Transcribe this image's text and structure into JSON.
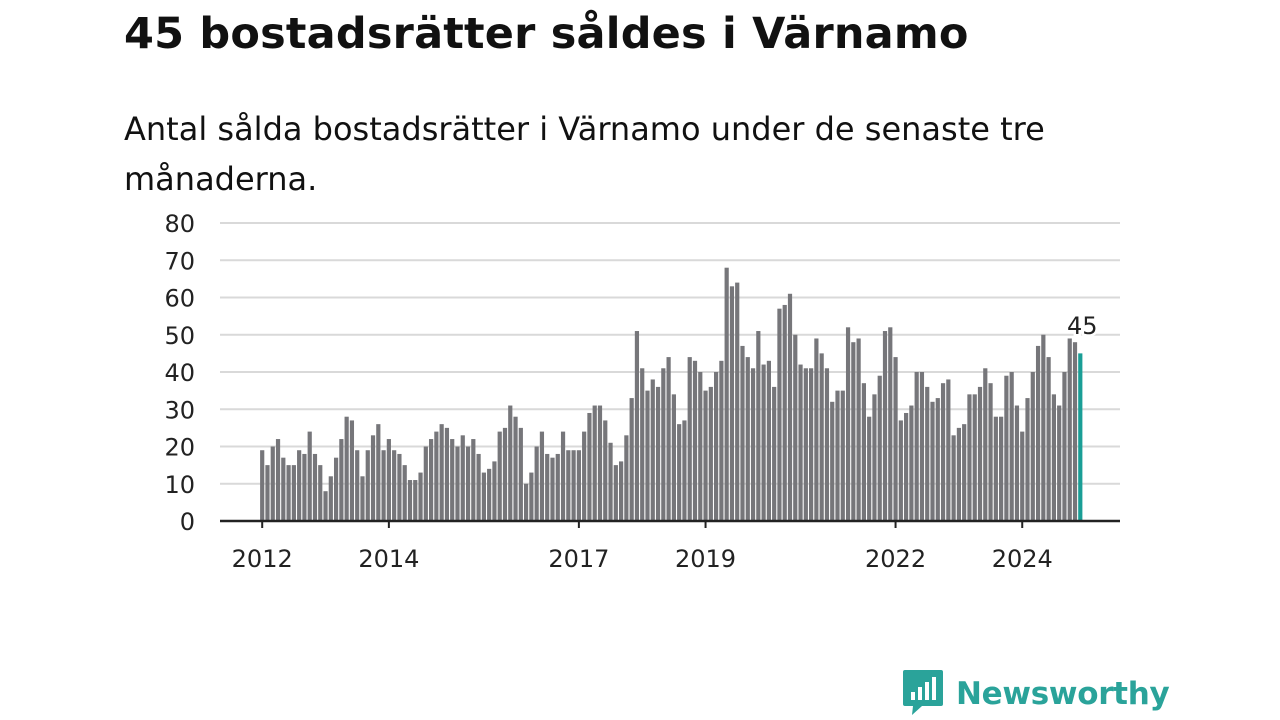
{
  "title": "45 bostadsrätter såldes i Värnamo",
  "subtitle": "Antal sålda bostadsrätter i Värnamo under de senaste tre månaderna.",
  "brand": {
    "name": "Newsworthy",
    "icon": "newsworthy-chart-bubble-icon",
    "color": "#2aa39a"
  },
  "colors": {
    "bar": "#76767a",
    "highlight": "#1a9e96",
    "grid": "#d9d9d9",
    "axis": "#222222"
  },
  "chart_data": {
    "type": "bar",
    "title": "45 bostadsrätter såldes i Värnamo",
    "subtitle": "Antal sålda bostadsrätter i Värnamo under de senaste tre månaderna.",
    "xlabel": "",
    "ylabel": "",
    "ylim": [
      0,
      80
    ],
    "yticks": [
      0,
      10,
      20,
      30,
      40,
      50,
      60,
      70,
      80
    ],
    "xticks": [
      "2012",
      "2014",
      "2017",
      "2019",
      "2022",
      "2024"
    ],
    "grid": true,
    "legend": "none",
    "x_start": "2012-01",
    "x_interval": "month",
    "values": [
      19,
      15,
      20,
      22,
      17,
      15,
      15,
      19,
      18,
      24,
      18,
      15,
      8,
      12,
      17,
      22,
      28,
      27,
      19,
      12,
      19,
      23,
      26,
      19,
      22,
      19,
      18,
      15,
      11,
      11,
      13,
      20,
      22,
      24,
      26,
      25,
      22,
      20,
      23,
      20,
      22,
      18,
      13,
      14,
      16,
      24,
      25,
      31,
      28,
      25,
      10,
      13,
      20,
      24,
      18,
      17,
      18,
      24,
      19,
      19,
      19,
      24,
      29,
      31,
      31,
      27,
      21,
      15,
      16,
      23,
      33,
      51,
      41,
      35,
      38,
      36,
      41,
      44,
      34,
      26,
      27,
      44,
      43,
      40,
      35,
      36,
      40,
      43,
      68,
      63,
      64,
      47,
      44,
      41,
      51,
      42,
      43,
      36,
      57,
      58,
      61,
      50,
      42,
      41,
      41,
      49,
      45,
      41,
      32,
      35,
      35,
      52,
      48,
      49,
      37,
      28,
      34,
      39,
      51,
      52,
      44,
      27,
      29,
      31,
      40,
      40,
      36,
      32,
      33,
      37,
      38,
      23,
      25,
      26,
      34,
      34,
      36,
      41,
      37,
      28,
      28,
      39,
      40,
      31,
      24,
      33,
      40,
      47,
      50,
      44,
      34,
      31,
      40,
      49,
      48,
      45
    ],
    "highlight_last": true,
    "annotation": {
      "label": "45",
      "value": 45
    }
  }
}
